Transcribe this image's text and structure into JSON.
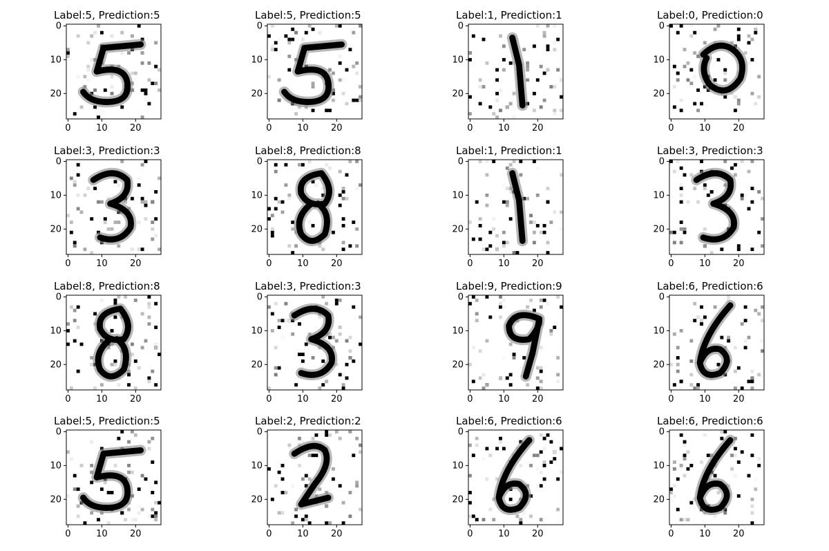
{
  "figure": {
    "axes": {
      "y_ticks": [
        0,
        10,
        20
      ],
      "x_ticks": [
        0,
        10,
        20
      ],
      "image_size": 28
    },
    "panels": [
      {
        "title": "Label:5, Prediction:5",
        "digit": "5"
      },
      {
        "title": "Label:5, Prediction:5",
        "digit": "5"
      },
      {
        "title": "Label:1, Prediction:1",
        "digit": "1"
      },
      {
        "title": "Label:0, Prediction:0",
        "digit": "0"
      },
      {
        "title": "Label:3, Prediction:3",
        "digit": "3"
      },
      {
        "title": "Label:8, Prediction:8",
        "digit": "8"
      },
      {
        "title": "Label:1, Prediction:1",
        "digit": "1"
      },
      {
        "title": "Label:3, Prediction:3",
        "digit": "3"
      },
      {
        "title": "Label:8, Prediction:8",
        "digit": "8"
      },
      {
        "title": "Label:3, Prediction:3",
        "digit": "3"
      },
      {
        "title": "Label:9, Prediction:9",
        "digit": "9"
      },
      {
        "title": "Label:6, Prediction:6",
        "digit": "6"
      },
      {
        "title": "Label:5, Prediction:5",
        "digit": "5"
      },
      {
        "title": "Label:2, Prediction:2",
        "digit": "2"
      },
      {
        "title": "Label:6, Prediction:6",
        "digit": "6"
      },
      {
        "title": "Label:6, Prediction:6",
        "digit": "6"
      }
    ]
  }
}
